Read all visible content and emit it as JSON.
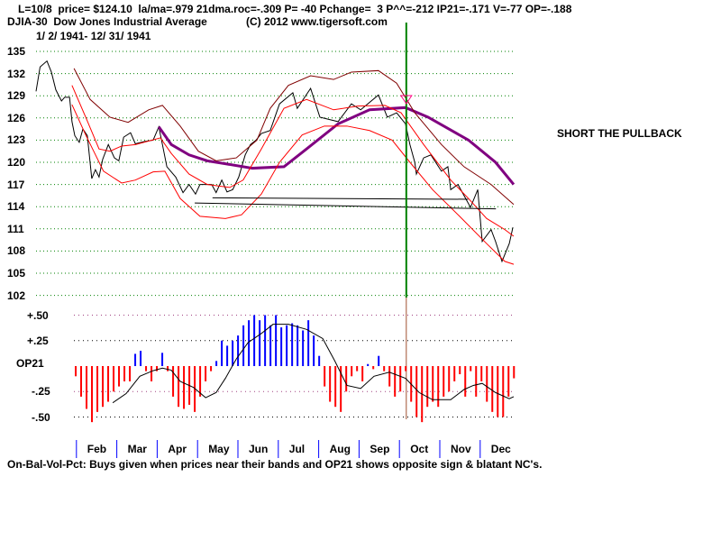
{
  "header": {
    "line1": "L=10/8  price= $124.10  la/ma=.979 21dma.roc=-.309 P= -40 Pchange=  3 P^^=-212 IP21=-.171 V=-77 OP=-.188",
    "symbol": "DJIA-30  Dow Jones Industrial Average",
    "copyright": "(C) 2012 www.tigersoft.com",
    "date_range": "1/ 2/ 1941- 12/ 31/ 1941"
  },
  "annotation": "SHORT THE PULLBACK",
  "footer": "On-Bal-Vol-Pct: Buys given when prices near their bands and OP21 shows opposite sign & blatant NC's.",
  "colors": {
    "price": "#000000",
    "ma": "#800080",
    "band_outer_upper": "#800000",
    "band_red": "#ff0000",
    "grid": "#008000",
    "op_pos": "#0000ff",
    "op_neg": "#ff0000",
    "signal": "#008000"
  },
  "chart_data": [
    {
      "type": "line",
      "title": "DJIA-30 Dow Jones Industrial Average 1941",
      "x_unit": "months since Jan 2 1941",
      "ylim": [
        102,
        135
      ],
      "yticks": [
        "135",
        "132",
        "129",
        "126",
        "123",
        "120",
        "117",
        "114",
        "111",
        "108",
        "105",
        "102"
      ],
      "signal_month": 9.17,
      "series": [
        {
          "name": "price",
          "points": [
            [
              0,
              129.6
            ],
            [
              0.1,
              132.9
            ],
            [
              0.27,
              133.7
            ],
            [
              0.38,
              132.2
            ],
            [
              0.49,
              129.8
            ],
            [
              0.63,
              128.3
            ],
            [
              0.71,
              128.8
            ],
            [
              0.83,
              128.8
            ],
            [
              0.89,
              125.5
            ],
            [
              0.96,
              123.6
            ],
            [
              1.07,
              122.7
            ],
            [
              1.16,
              124.5
            ],
            [
              1.27,
              123.6
            ],
            [
              1.38,
              117.8
            ],
            [
              1.47,
              119
            ],
            [
              1.56,
              118
            ],
            [
              1.65,
              120.4
            ],
            [
              1.79,
              122.4
            ],
            [
              1.94,
              120.6
            ],
            [
              2.05,
              120.2
            ],
            [
              2.17,
              123.4
            ],
            [
              2.34,
              124
            ],
            [
              2.46,
              122.5
            ],
            [
              2.68,
              122.8
            ],
            [
              2.9,
              123
            ],
            [
              3.04,
              124.8
            ],
            [
              3.13,
              122.4
            ],
            [
              3.24,
              119.4
            ],
            [
              3.46,
              118
            ],
            [
              3.64,
              115.9
            ],
            [
              3.79,
              117
            ],
            [
              3.95,
              115.7
            ],
            [
              4.06,
              117
            ],
            [
              4.2,
              117
            ],
            [
              4.35,
              117
            ],
            [
              4.46,
              115.9
            ],
            [
              4.6,
              117.6
            ],
            [
              4.73,
              116
            ],
            [
              4.87,
              116.3
            ],
            [
              5.02,
              118
            ],
            [
              5.18,
              121
            ],
            [
              5.31,
              122.4
            ],
            [
              5.45,
              123
            ],
            [
              5.58,
              123.9
            ],
            [
              5.8,
              124.3
            ],
            [
              6.03,
              127.9
            ],
            [
              6.36,
              129.4
            ],
            [
              6.47,
              127.3
            ],
            [
              6.8,
              130
            ],
            [
              7.03,
              126.1
            ],
            [
              7.48,
              125.5
            ],
            [
              7.81,
              127.9
            ],
            [
              8.04,
              127.1
            ],
            [
              8.48,
              129.1
            ],
            [
              8.7,
              126.1
            ],
            [
              8.93,
              126.7
            ],
            [
              9.15,
              125.2
            ],
            [
              9.26,
              122.4
            ],
            [
              9.38,
              120
            ],
            [
              9.42,
              118.4
            ],
            [
              9.6,
              120.6
            ],
            [
              9.78,
              121
            ],
            [
              10.04,
              118.8
            ],
            [
              10.2,
              119.4
            ],
            [
              10.27,
              116.3
            ],
            [
              10.45,
              117
            ],
            [
              10.58,
              115.7
            ],
            [
              10.76,
              113.9
            ],
            [
              10.94,
              116.3
            ],
            [
              11.05,
              109.3
            ],
            [
              11.27,
              110.9
            ],
            [
              11.38,
              109.3
            ],
            [
              11.54,
              106.6
            ],
            [
              11.72,
              109
            ],
            [
              11.81,
              111.2
            ]
          ]
        },
        {
          "name": "ma",
          "points": [
            [
              3.04,
              124.8
            ],
            [
              3.35,
              122.4
            ],
            [
              3.79,
              121
            ],
            [
              4.24,
              120.2
            ],
            [
              4.69,
              119.8
            ],
            [
              5.36,
              119.2
            ],
            [
              6.14,
              119.4
            ],
            [
              6.7,
              121.8
            ],
            [
              7.48,
              125.2
            ],
            [
              8.26,
              127.1
            ],
            [
              9.15,
              127.4
            ],
            [
              9.71,
              126.1
            ],
            [
              10.71,
              123
            ],
            [
              11.38,
              120
            ],
            [
              11.83,
              117
            ]
          ]
        },
        {
          "name": "band_outer_upper",
          "points": [
            [
              0.94,
              132.7
            ],
            [
              1.34,
              128.5
            ],
            [
              1.83,
              126.1
            ],
            [
              2.28,
              125.4
            ],
            [
              2.79,
              127.1
            ],
            [
              3.13,
              127.7
            ],
            [
              3.57,
              124.9
            ],
            [
              4.02,
              121.5
            ],
            [
              4.46,
              120.2
            ],
            [
              4.96,
              120.6
            ],
            [
              5.47,
              123
            ],
            [
              5.8,
              127.3
            ],
            [
              6.25,
              130.4
            ],
            [
              6.8,
              131.7
            ],
            [
              7.37,
              131.2
            ],
            [
              7.81,
              132.2
            ],
            [
              8.48,
              132.4
            ],
            [
              8.93,
              130.7
            ],
            [
              9.38,
              126.7
            ],
            [
              10.04,
              122.4
            ],
            [
              10.6,
              119.4
            ],
            [
              11.27,
              117
            ],
            [
              11.83,
              114.3
            ]
          ]
        },
        {
          "name": "band_inner",
          "points": [
            [
              0.89,
              130.4
            ],
            [
              1.23,
              126.1
            ],
            [
              1.56,
              121.8
            ],
            [
              1.83,
              121.5
            ],
            [
              2.12,
              122.2
            ],
            [
              2.46,
              122.4
            ],
            [
              3.08,
              123.3
            ],
            [
              3.35,
              121.2
            ],
            [
              3.79,
              118.4
            ],
            [
              4.24,
              117
            ],
            [
              4.8,
              116.6
            ],
            [
              5.13,
              117.6
            ],
            [
              5.58,
              121.8
            ],
            [
              6.14,
              127.3
            ],
            [
              6.7,
              128.5
            ],
            [
              7.37,
              127.1
            ],
            [
              7.97,
              127.6
            ],
            [
              8.64,
              127.7
            ],
            [
              9.04,
              126.7
            ],
            [
              9.6,
              122.4
            ],
            [
              10.27,
              117.6
            ],
            [
              10.71,
              115.1
            ],
            [
              11.16,
              112.4
            ],
            [
              11.61,
              110.9
            ],
            [
              11.83,
              110
            ]
          ]
        },
        {
          "name": "band_lower",
          "points": [
            [
              0.89,
              127.8
            ],
            [
              1.23,
              123.7
            ],
            [
              1.67,
              118.8
            ],
            [
              2.12,
              117.2
            ],
            [
              2.46,
              117.6
            ],
            [
              2.9,
              118.7
            ],
            [
              3.19,
              118.8
            ],
            [
              3.57,
              115.1
            ],
            [
              4.06,
              112.7
            ],
            [
              4.69,
              112.4
            ],
            [
              5.09,
              112.9
            ],
            [
              5.58,
              115.7
            ],
            [
              6.03,
              120
            ],
            [
              6.59,
              123.7
            ],
            [
              7.14,
              124.9
            ],
            [
              7.7,
              124.9
            ],
            [
              8.26,
              124.3
            ],
            [
              8.82,
              123
            ],
            [
              9.26,
              120
            ],
            [
              9.82,
              116.3
            ],
            [
              10.49,
              112.7
            ],
            [
              11.16,
              109
            ],
            [
              11.61,
              106.6
            ],
            [
              11.83,
              106.2
            ]
          ]
        },
        {
          "name": "support_line_1",
          "points": [
            [
              4.37,
              115.2
            ],
            [
              10.7,
              115
            ]
          ]
        },
        {
          "name": "support_line_2",
          "points": [
            [
              3.93,
              114.5
            ],
            [
              11.39,
              113.7
            ]
          ]
        }
      ]
    },
    {
      "type": "bar",
      "title": "OP21",
      "ylim": [
        -0.6,
        0.55
      ],
      "yticks": [
        {
          "label": "+.50",
          "v": 0.5
        },
        {
          "label": "+.25",
          "v": 0.25
        },
        {
          "label": "OP21",
          "v": 0.03
        },
        {
          "label": "-.25",
          "v": -0.25
        },
        {
          "label": "-.50",
          "v": -0.5
        }
      ],
      "x_start_month": 0.96,
      "x_step_month": 0.134,
      "values": [
        -0.1,
        -0.3,
        -0.42,
        -0.55,
        -0.45,
        -0.4,
        -0.35,
        -0.25,
        -0.2,
        -0.15,
        -0.15,
        0.12,
        0.15,
        -0.05,
        -0.15,
        -0.05,
        0.13,
        -0.05,
        -0.3,
        -0.4,
        -0.42,
        -0.38,
        -0.45,
        -0.3,
        -0.15,
        -0.05,
        0.05,
        0.25,
        0.2,
        0.25,
        0.3,
        0.4,
        0.45,
        0.5,
        0.45,
        0.5,
        0.4,
        0.5,
        0.38,
        0.4,
        0.42,
        0.4,
        0.35,
        0.45,
        0.3,
        0.1,
        -0.2,
        -0.35,
        -0.4,
        -0.45,
        -0.25,
        -0.1,
        -0.05,
        -0.15,
        0.02,
        -0.03,
        0.1,
        -0.05,
        -0.2,
        -0.3,
        -0.25,
        -0.05,
        -0.35,
        -0.5,
        -0.55,
        -0.4,
        -0.35,
        -0.4,
        -0.3,
        -0.25,
        -0.15,
        -0.08,
        -0.3,
        -0.05,
        -0.3,
        -0.15,
        -0.35,
        -0.45,
        -0.5,
        -0.5,
        -0.3,
        -0.12
      ],
      "ma_points": [
        [
          1.9,
          -0.36
        ],
        [
          2.23,
          -0.27
        ],
        [
          2.57,
          -0.1
        ],
        [
          2.9,
          -0.045
        ],
        [
          3.13,
          -0.02
        ],
        [
          3.35,
          -0.04
        ],
        [
          3.57,
          -0.15
        ],
        [
          3.9,
          -0.21
        ],
        [
          4.2,
          -0.31
        ],
        [
          4.46,
          -0.26
        ],
        [
          4.69,
          -0.12
        ],
        [
          4.96,
          0.07
        ],
        [
          5.25,
          0.23
        ],
        [
          5.58,
          0.32
        ],
        [
          5.87,
          0.41
        ],
        [
          6.25,
          0.41
        ],
        [
          6.7,
          0.36
        ],
        [
          7.1,
          0.27
        ],
        [
          7.4,
          0.05
        ],
        [
          7.7,
          -0.19
        ],
        [
          8.04,
          -0.22
        ],
        [
          8.37,
          -0.1
        ],
        [
          8.75,
          -0.06
        ],
        [
          9.15,
          -0.12
        ],
        [
          9.49,
          -0.26
        ],
        [
          9.82,
          -0.33
        ],
        [
          10.27,
          -0.33
        ],
        [
          10.6,
          -0.23
        ],
        [
          10.83,
          -0.19
        ],
        [
          11.05,
          -0.17
        ],
        [
          11.38,
          -0.26
        ],
        [
          11.72,
          -0.32
        ],
        [
          11.83,
          -0.3
        ]
      ],
      "months": [
        "Feb",
        "Mar",
        "Apr",
        "May",
        "Jun",
        "Jul",
        "Aug",
        "Sep",
        "Oct",
        "Nov",
        "Dec"
      ]
    }
  ]
}
